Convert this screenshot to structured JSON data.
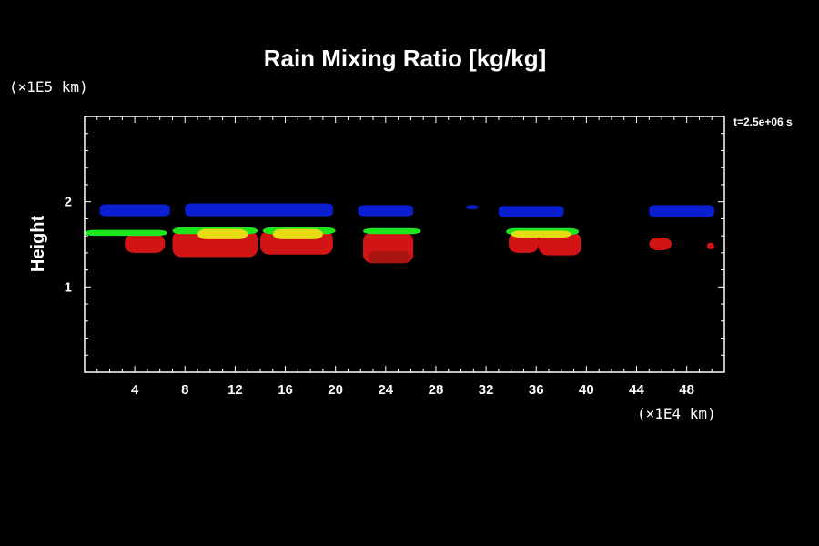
{
  "chart_data": {
    "type": "heatmap",
    "title": "Rain Mixing Ratio [kg/kg]",
    "ylabel": "Height",
    "xlabel": "",
    "x_unit": "(×1E4 km)",
    "y_unit": "(×1E5 km)",
    "time_label": "t=2.5e+06 s",
    "xlim": [
      0,
      51
    ],
    "ylim": [
      0,
      3
    ],
    "x_ticks": [
      4,
      8,
      12,
      16,
      20,
      24,
      28,
      32,
      36,
      40,
      44,
      48
    ],
    "y_ticks": [
      1,
      2
    ],
    "grid": false,
    "colors": {
      "background": "#000000",
      "axis": "#ffffff",
      "level_blue": "#0a1ed2",
      "level_green": "#1ee61e",
      "level_yellow": "#e6dc14",
      "level_orange": "#d28c14",
      "level_red": "#d21414",
      "level_darkred": "#a8140e"
    },
    "regions": [
      {
        "level": "blue",
        "x": [
          1.2,
          6.8
        ],
        "y": [
          1.83,
          1.97
        ]
      },
      {
        "level": "blue",
        "x": [
          8.0,
          19.8
        ],
        "y": [
          1.83,
          1.98
        ]
      },
      {
        "level": "blue",
        "x": [
          21.8,
          26.2
        ],
        "y": [
          1.83,
          1.96
        ]
      },
      {
        "level": "blue",
        "x": [
          30.4,
          31.4
        ],
        "y": [
          1.91,
          1.96
        ]
      },
      {
        "level": "blue",
        "x": [
          33.0,
          38.2
        ],
        "y": [
          1.82,
          1.95
        ]
      },
      {
        "level": "blue",
        "x": [
          45.0,
          50.2
        ],
        "y": [
          1.82,
          1.96
        ]
      },
      {
        "level": "red",
        "x": [
          3.2,
          6.4
        ],
        "y": [
          1.4,
          1.62
        ]
      },
      {
        "level": "red",
        "x": [
          7.0,
          13.8
        ],
        "y": [
          1.35,
          1.66
        ]
      },
      {
        "level": "red",
        "x": [
          14.0,
          19.8
        ],
        "y": [
          1.38,
          1.66
        ]
      },
      {
        "level": "red",
        "x": [
          22.2,
          26.2
        ],
        "y": [
          1.28,
          1.64
        ]
      },
      {
        "level": "red",
        "x": [
          33.8,
          36.2
        ],
        "y": [
          1.4,
          1.64
        ]
      },
      {
        "level": "red",
        "x": [
          36.2,
          39.6
        ],
        "y": [
          1.37,
          1.64
        ]
      },
      {
        "level": "red",
        "x": [
          45.0,
          46.8
        ],
        "y": [
          1.43,
          1.58
        ]
      },
      {
        "level": "red",
        "x": [
          49.6,
          50.2
        ],
        "y": [
          1.44,
          1.52
        ]
      },
      {
        "level": "green",
        "x": [
          0.0,
          6.6
        ],
        "y": [
          1.6,
          1.67
        ]
      },
      {
        "level": "green",
        "x": [
          7.0,
          13.8
        ],
        "y": [
          1.62,
          1.7
        ]
      },
      {
        "level": "green",
        "x": [
          14.2,
          20.0
        ],
        "y": [
          1.62,
          1.7
        ]
      },
      {
        "level": "green",
        "x": [
          22.2,
          26.8
        ],
        "y": [
          1.62,
          1.69
        ]
      },
      {
        "level": "green",
        "x": [
          33.6,
          39.4
        ],
        "y": [
          1.61,
          1.69
        ]
      },
      {
        "level": "yellow",
        "x": [
          9.0,
          13.0
        ],
        "y": [
          1.56,
          1.68
        ]
      },
      {
        "level": "yellow",
        "x": [
          15.0,
          19.0
        ],
        "y": [
          1.56,
          1.68
        ]
      },
      {
        "level": "yellow",
        "x": [
          34.0,
          38.8
        ],
        "y": [
          1.58,
          1.66
        ]
      },
      {
        "level": "darkred",
        "x": [
          22.6,
          26.0
        ],
        "y": [
          1.28,
          1.42
        ]
      }
    ]
  }
}
